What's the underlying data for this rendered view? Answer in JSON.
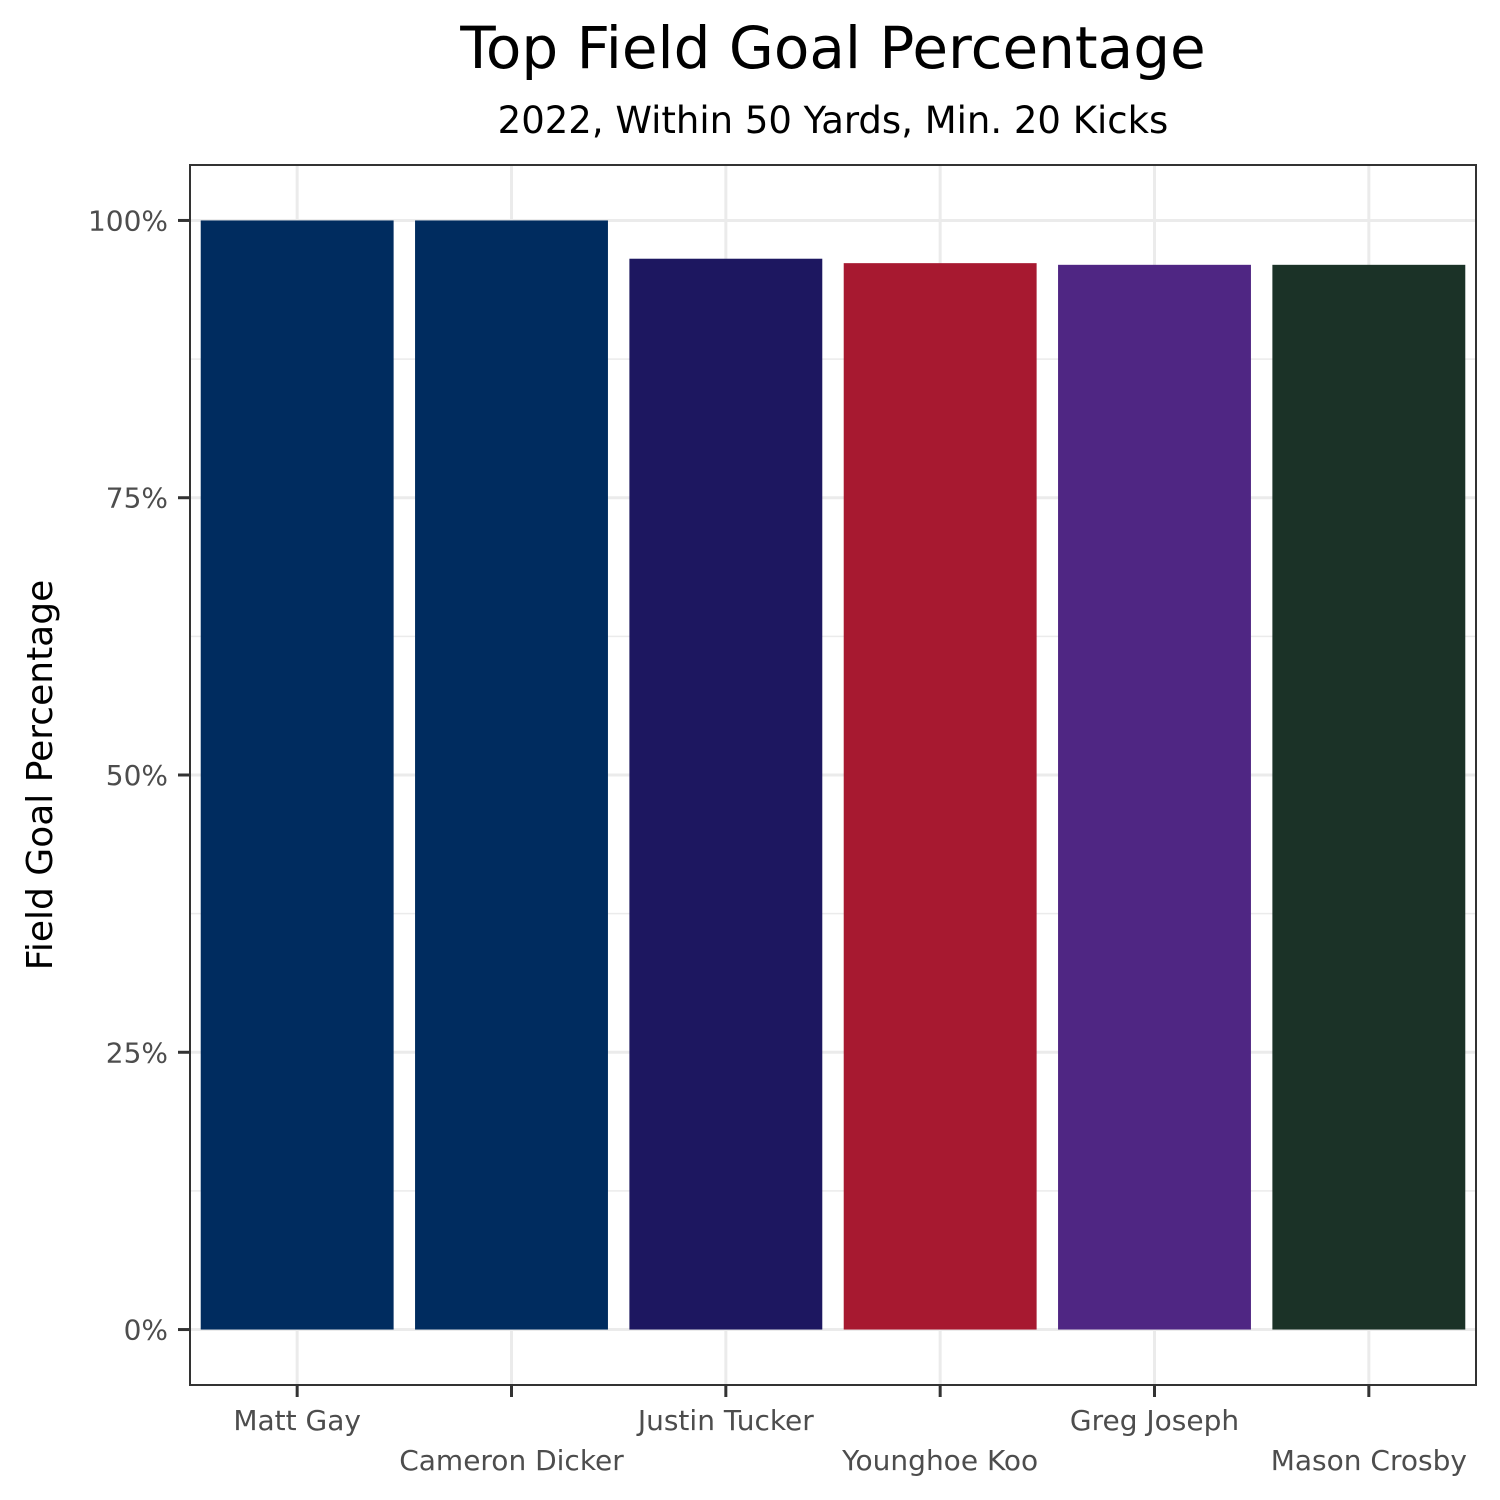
{
  "chart_data": {
    "type": "bar",
    "title": "Top Field Goal Percentage",
    "subtitle": "2022, Within 50 Yards, Min. 20 Kicks",
    "xlabel": "",
    "ylabel": "Field  Goal  Percentage",
    "categories": [
      "Matt Gay",
      "Cameron Dicker",
      "Justin Tucker",
      "Younghoe Koo",
      "Greg Joseph",
      "Mason Crosby"
    ],
    "values": [
      1.0,
      1.0,
      0.9655,
      0.9615,
      0.96,
      0.96
    ],
    "colors": [
      "#002C5F",
      "#002C5F",
      "#1D1760",
      "#A71930",
      "#4F2683",
      "#1B3227"
    ],
    "ylim": [
      -0.05,
      1.05
    ],
    "yticks": [
      0,
      0.25,
      0.5,
      0.75,
      1.0
    ],
    "ytick_labels": [
      "0%",
      "25%",
      "50%",
      "75%",
      "100%"
    ],
    "grid": true,
    "legend": "none"
  }
}
